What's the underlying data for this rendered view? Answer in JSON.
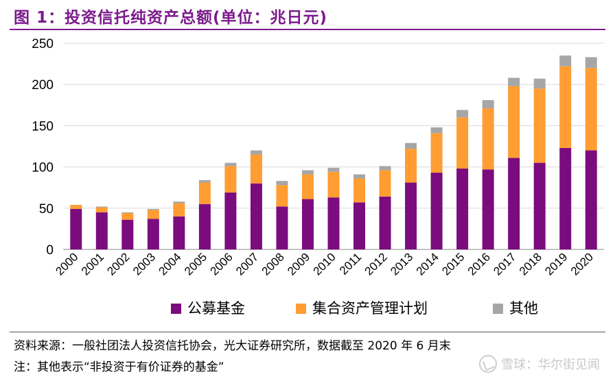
{
  "title": "图 1：投资信托纯资产总额(单位：兆日元)",
  "chart_data": {
    "type": "bar",
    "stacked": true,
    "categories": [
      "2000",
      "2001",
      "2002",
      "2003",
      "2004",
      "2005",
      "2006",
      "2007",
      "2008",
      "2009",
      "2010",
      "2011",
      "2012",
      "2013",
      "2014",
      "2015",
      "2016",
      "2017",
      "2018",
      "2019",
      "2020"
    ],
    "series": [
      {
        "name": "公募基金",
        "color": "#7b0c7e",
        "values": [
          49,
          45,
          36,
          37,
          40,
          55,
          69,
          80,
          52,
          61,
          63,
          57,
          64,
          81,
          93,
          98,
          97,
          111,
          105,
          123,
          120
        ]
      },
      {
        "name": "集合资产管理计划",
        "color": "#ff9d33",
        "values": [
          5,
          6,
          8,
          11,
          16,
          26,
          32,
          35,
          26,
          30,
          31,
          29,
          32,
          41,
          48,
          62,
          74,
          87,
          90,
          99,
          100
        ]
      },
      {
        "name": "其他",
        "color": "#a6a6a6",
        "values": [
          0,
          1,
          1,
          1,
          2,
          3,
          4,
          5,
          5,
          5,
          5,
          5,
          5,
          7,
          7,
          9,
          10,
          10,
          12,
          13,
          13
        ]
      }
    ],
    "yticks": [
      0,
      50,
      100,
      150,
      200,
      250
    ],
    "ylim": [
      0,
      250
    ],
    "grid": true,
    "legend_position": "bottom"
  },
  "footer": {
    "source": "资料来源：一般社团法人投资信托协会，光大证券研究所，数据截至 2020 年 6 月末",
    "note": "注：其他表示“非投资于有价证券的基金”",
    "watermark": "雪球：华尔街见闻"
  }
}
